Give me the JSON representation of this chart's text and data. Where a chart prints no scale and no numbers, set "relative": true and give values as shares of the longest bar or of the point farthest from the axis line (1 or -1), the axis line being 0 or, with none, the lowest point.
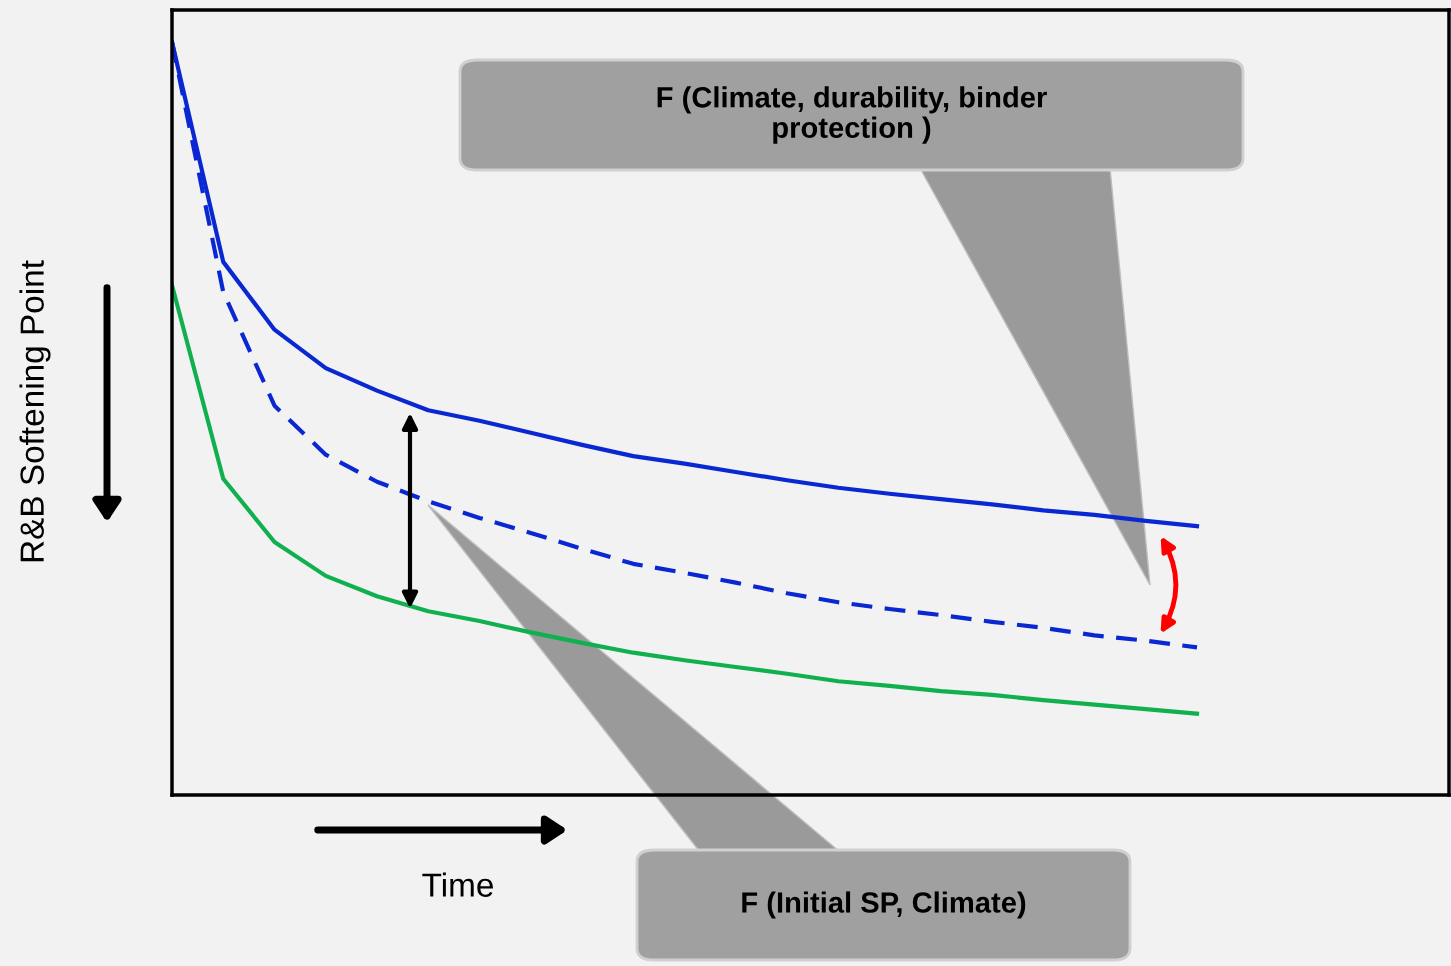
{
  "chart_data": {
    "type": "line",
    "relative": true,
    "xlabel": "Time",
    "ylabel": "R&B Softening Point",
    "categories": [
      null,
      null,
      null,
      null,
      null,
      null,
      null,
      null,
      null,
      null,
      null,
      null,
      null,
      null,
      null,
      null,
      null,
      null,
      null,
      null,
      null
    ],
    "series": [
      {
        "color": "#0a28d2",
        "line_style": "solid",
        "values": [
          1.0,
          0.708,
          0.618,
          0.567,
          0.537,
          0.511,
          0.497,
          0.481,
          0.465,
          0.45,
          0.44,
          0.429,
          0.418,
          0.408,
          0.4,
          0.393,
          0.386,
          0.378,
          0.372,
          0.364,
          0.357
        ]
      },
      {
        "color": "#0a28d2",
        "line_style": "dashed",
        "values": [
          1.0,
          0.668,
          0.517,
          0.452,
          0.416,
          0.39,
          0.368,
          0.348,
          0.327,
          0.307,
          0.295,
          0.282,
          0.268,
          0.256,
          0.247,
          0.239,
          0.23,
          0.222,
          0.212,
          0.205,
          0.196
        ]
      },
      {
        "color": "#10b04f",
        "line_style": "solid",
        "values": [
          0.677,
          0.42,
          0.336,
          0.291,
          0.264,
          0.244,
          0.231,
          0.216,
          0.202,
          0.189,
          0.179,
          0.17,
          0.161,
          0.151,
          0.145,
          0.138,
          0.133,
          0.126,
          0.12,
          0.114,
          0.108
        ]
      }
    ],
    "annotations": [
      "F (Climate, durability, binder protection )",
      "F (Initial SP, Climate)"
    ],
    "marker": "none"
  }
}
